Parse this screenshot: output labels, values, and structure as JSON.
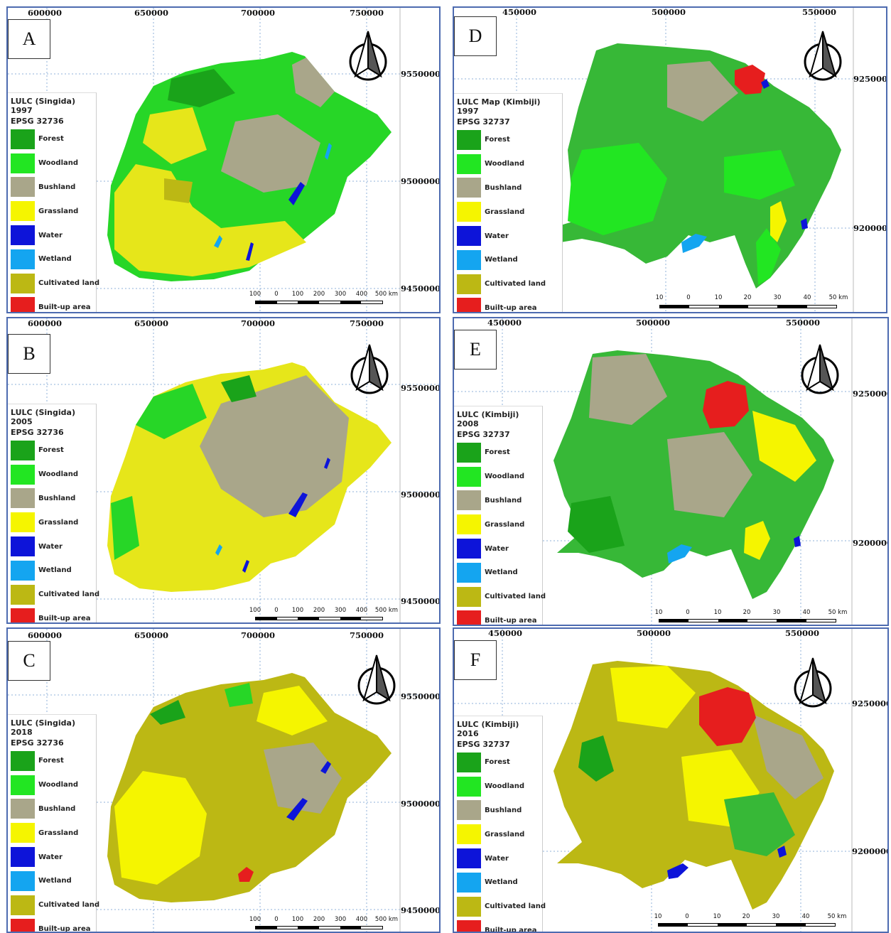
{
  "legend_items": [
    {
      "label": "Forest",
      "color": "#1aa31a"
    },
    {
      "label": "Woodland",
      "color": "#22e622"
    },
    {
      "label": "Bushland",
      "color": "#a9a68a"
    },
    {
      "label": "Grassland",
      "color": "#f5f500"
    },
    {
      "label": "Water",
      "color": "#0d14d9"
    },
    {
      "label": "Wetland",
      "color": "#14a5f0"
    },
    {
      "label": "Cultivated land",
      "color": "#bcb814"
    },
    {
      "label": "Built-up area",
      "color": "#e61e1e"
    }
  ],
  "panels": [
    {
      "id": "A",
      "title": "LULC (Singida) 1997",
      "epsg": "EPSG 32736",
      "x_ticks": [
        "600000",
        "650000",
        "700000",
        "750000"
      ],
      "y_ticks": [
        "9550000",
        "9500000",
        "9450000"
      ],
      "scale_ticks": [
        "100",
        "0",
        "100",
        "200",
        "300",
        "400",
        "500 km"
      ]
    },
    {
      "id": "B",
      "title": "LULC (Singida) 2005",
      "epsg": "EPSG 32736",
      "x_ticks": [
        "600000",
        "650000",
        "700000",
        "750000"
      ],
      "y_ticks": [
        "9550000",
        "9500000",
        "9450000"
      ],
      "scale_ticks": [
        "100",
        "0",
        "100",
        "200",
        "300",
        "400",
        "500 km"
      ]
    },
    {
      "id": "C",
      "title": "LULC (Singida) 2018",
      "epsg": "EPSG 32736",
      "x_ticks": [
        "600000",
        "650000",
        "700000",
        "750000"
      ],
      "y_ticks": [
        "9550000",
        "9500000",
        "9450000"
      ],
      "scale_ticks": [
        "100",
        "0",
        "100",
        "200",
        "300",
        "400",
        "500 km"
      ]
    },
    {
      "id": "D",
      "title": "LULC Map (Kimbiji) 1997",
      "epsg": "EPSG 32737",
      "x_ticks": [
        "450000",
        "500000",
        "550000"
      ],
      "y_ticks": [
        "9250000",
        "9200000"
      ],
      "scale_ticks": [
        "10",
        "0",
        "10",
        "20",
        "30",
        "40",
        "50 km"
      ]
    },
    {
      "id": "E",
      "title": "LULC (Kimbiji) 2008",
      "epsg": "EPSG 32737",
      "x_ticks": [
        "450000",
        "500000",
        "550000"
      ],
      "y_ticks": [
        "9250000",
        "9200000"
      ],
      "scale_ticks": [
        "10",
        "0",
        "10",
        "20",
        "30",
        "40",
        "50 km"
      ]
    },
    {
      "id": "F",
      "title": "LULC (Kimbiji) 2016",
      "epsg": "EPSG 32737",
      "x_ticks": [
        "450000",
        "500000",
        "550000"
      ],
      "y_ticks": [
        "9250000",
        "9200000"
      ],
      "scale_ticks": [
        "10",
        "0",
        "10",
        "20",
        "30",
        "40",
        "50 km"
      ]
    }
  ]
}
